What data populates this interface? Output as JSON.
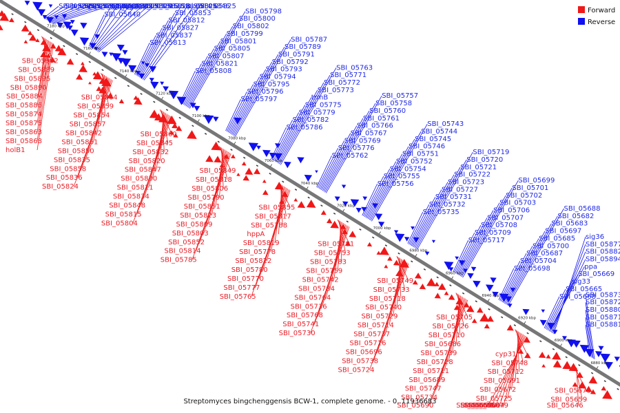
{
  "legend": {
    "forward": {
      "label": "Forward",
      "color": "#f01818"
    },
    "reverse": {
      "label": "Reverse",
      "color": "#1010f0"
    }
  },
  "caption": {
    "title": "Streptomyces bingchenggensis BCW-1, complete genome. - 0..11936683"
  },
  "axis": {
    "ticks": [
      "7180 kbp",
      "7160 kbp",
      "7140 kbp",
      "7120 kbp",
      "7100 kbp",
      "7080 kbp",
      "7060 kbp",
      "7040 kbp",
      "7020 kbp",
      "7000 kbp",
      "6980 kbp",
      "6960 kbp",
      "6940 kbp",
      "6920 kbp",
      "6900 kbp",
      "6880 kbp"
    ]
  },
  "features": {
    "forward": [
      "SBI_05902",
      "SBI_05889",
      "SBI_05895",
      "SBI_05890",
      "SBI_05884",
      "SBI_05886",
      "SBI_05874",
      "SBI_05875",
      "SBI_05863",
      "SBI_05868",
      "holB1",
      "SBI_05864",
      "SBI_05859",
      "SBI_05854",
      "SBI_05857",
      "SBI_05842",
      "SBI_05861",
      "SBI_05850",
      "SBI_05835",
      "SBI_05858",
      "SBI_05836",
      "SBI_05824",
      "SBI_05860",
      "SBI_05845",
      "SBI_05832",
      "SBI_05820",
      "SBI_05847",
      "SBI_05830",
      "SBI_05811",
      "SBI_05834",
      "SBI_05848",
      "SBI_05815",
      "SBI_05804",
      "SBI_05849",
      "SBI_05818",
      "SBI_05806",
      "SBI_05790",
      "SBI_05851",
      "SBI_05823",
      "SBI_05809",
      "SBI_05803",
      "SBI_05852",
      "SBI_05814",
      "SBI_05785",
      "SBI_05855",
      "SBI_05817",
      "SBI_05788",
      "hppA",
      "SBI_05819",
      "SBI_05778",
      "SBI_05822",
      "SBI_05780",
      "SBI_05770",
      "SBI_05777",
      "SBI_05765",
      "SBI_05781",
      "SBI_05753",
      "SBI_05783",
      "SBI_05759",
      "SBI_05742",
      "SBI_05784",
      "SBI_05764",
      "SBI_05736",
      "SBI_05768",
      "SBI_05741",
      "SBI_05730",
      "SBI_05749",
      "SBI_05733",
      "SBI_05718",
      "SBI_05740",
      "SBI_05729",
      "SBI_05714",
      "SBI_05737",
      "SBI_05716",
      "SBI_05696",
      "SBI_05738",
      "SBI_05724",
      "SBI_05705",
      "SBI_05726",
      "SBI_05710",
      "SBI_05686",
      "SBI_05739",
      "SBI_05728",
      "SBI_05711",
      "SBI_05689",
      "SBI_05747",
      "SBI_05734",
      "SBI_05690",
      "cyp31",
      "SBI_05748",
      "SBI_05712",
      "SBI_05691",
      "SBI_05672",
      "SBI_05725",
      "SBI_05679",
      "SBI_05664",
      "SBI_05684",
      "SBI_05670",
      "SBI_05654",
      "SBI_05673",
      "SBI_05659",
      "SBI_05646"
    ],
    "reverse": [
      "SBI_05885",
      "SBI_05883",
      "hmuV",
      "SBI_05869",
      "SBI_05867",
      "SBI_05866",
      "SBI_05865",
      "SBI_05844",
      "SBI_05843",
      "SBI_05840",
      "SBI_05833",
      "SBI_05831",
      "pra2",
      "traSA2",
      "SBI_05829",
      "SBI_05816",
      "SBI_05838",
      "SBI_05828",
      "SBI_05813",
      "SBI_05837",
      "SBI_05827",
      "SBI_05812",
      "SBI_05853",
      "SBI_05826",
      "pbp7",
      "SBI_05846",
      "SBI_05825",
      "SBI_05808",
      "SBI_05821",
      "SBI_05807",
      "SBI_05805",
      "SBI_05801",
      "SBI_05799",
      "SBI_05802",
      "SBI_05800",
      "SBI_05798",
      "SBI_05797",
      "SBI_05796",
      "SBI_05795",
      "SBI_05794",
      "SBI_05793",
      "SBI_05792",
      "SBI_05791",
      "SBI_05789",
      "SBI_05787",
      "SBI_05786",
      "SBI_05782",
      "SBI_05779",
      "SBI_05775",
      "trmB",
      "SBI_05773",
      "SBI_05772",
      "SBI_05771",
      "SBI_05763",
      "SBI_05762",
      "SBI_05776",
      "SBI_05769",
      "SBI_05767",
      "SBI_05766",
      "SBI_05761",
      "SBI_05760",
      "SBI_05758",
      "SBI_05757",
      "SBI_05756",
      "SBI_05755",
      "SBI_05754",
      "SBI_05752",
      "SBI_05751",
      "SBI_05746",
      "SBI_05745",
      "SBI_05744",
      "SBI_05743",
      "SBI_05735",
      "SBI_05732",
      "SBI_05731",
      "SBI_05727",
      "SBI_05723",
      "SBI_05722",
      "SBI_05721",
      "SBI_05720",
      "SBI_05719",
      "SBI_05717",
      "SBI_05709",
      "SBI_05708",
      "SBI_05707",
      "SBI_05706",
      "SBI_05703",
      "SBI_05702",
      "SBI_05701",
      "SBI_05699",
      "SBI_05698",
      "SBI_05704",
      "SBI_05687",
      "SBI_05700",
      "SBI_05685",
      "SBI_05697",
      "SBI_05683",
      "SBI_05682",
      "SBI_05688",
      "SBI_05668",
      "SBI_05665",
      "sig33",
      "SBI_05669",
      "ppa",
      "SBI_05894",
      "SBI_05882",
      "SBI_05877",
      "sig36",
      "SBI_05881",
      "SBI_05871",
      "SBI_05880",
      "SBI_05872",
      "SBI_05873"
    ]
  }
}
